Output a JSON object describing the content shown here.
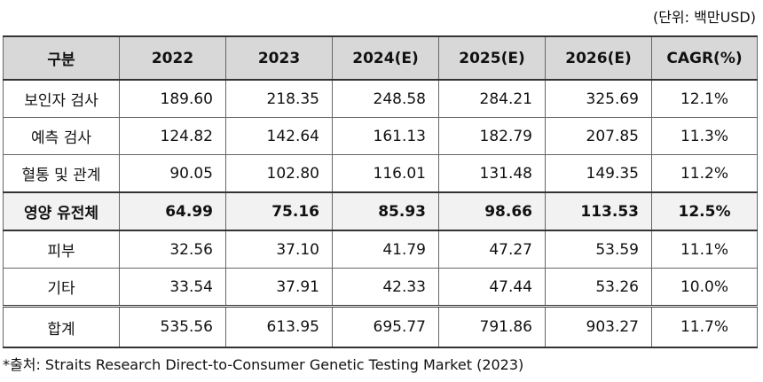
{
  "unit_note": "(단위: 백만USD)",
  "headers": [
    "구분",
    "2022",
    "2023",
    "2024(E)",
    "2025(E)",
    "2026(E)",
    "CAGR(%)"
  ],
  "rows": [
    {
      "label": "보인자 검사",
      "values": [
        "189.60",
        "218.35",
        "248.58",
        "284.21",
        "325.69"
      ],
      "cagr": "12.1%"
    },
    {
      "label": "예측 검사",
      "values": [
        "124.82",
        "142.64",
        "161.13",
        "182.79",
        "207.85"
      ],
      "cagr": "11.3%"
    },
    {
      "label": "혈통 및 관계",
      "values": [
        "90.05",
        "102.80",
        "116.01",
        "131.48",
        "149.35"
      ],
      "cagr": "11.2%"
    },
    {
      "label": "영양 유전체",
      "values": [
        "64.99",
        "75.16",
        "85.93",
        "98.66",
        "113.53"
      ],
      "cagr": "12.5%"
    },
    {
      "label": "피부",
      "values": [
        "32.56",
        "37.10",
        "41.79",
        "47.27",
        "53.59"
      ],
      "cagr": "11.1%"
    },
    {
      "label": "기타",
      "values": [
        "33.54",
        "37.91",
        "42.33",
        "47.44",
        "53.26"
      ],
      "cagr": "10.0%"
    },
    {
      "label": "합계",
      "values": [
        "535.56",
        "613.95",
        "695.77",
        "791.86",
        "903.27"
      ],
      "cagr": "11.7%"
    }
  ],
  "source": "*출처: Straits Research Direct-to-Consumer Genetic Testing Market (2023)"
}
